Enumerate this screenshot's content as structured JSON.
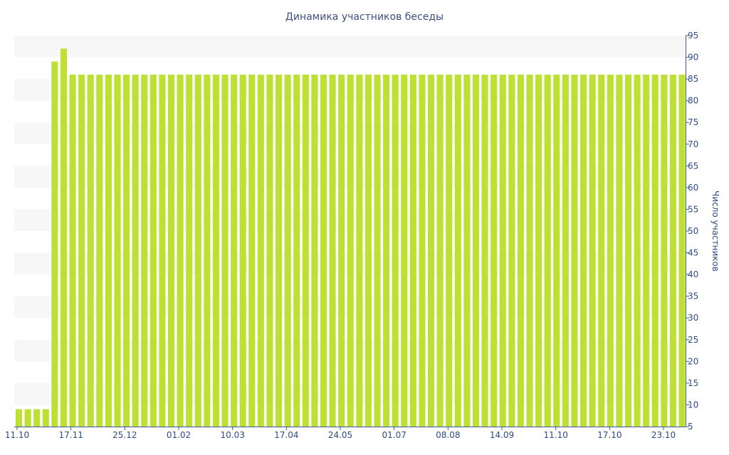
{
  "colors": {
    "bar": "#bde033",
    "axis": "#3e5a9a",
    "text": "#2e4a88",
    "band": "#f7f7f7"
  },
  "chart_data": {
    "type": "bar",
    "title": "Динамика участников беседы",
    "xlabel": "",
    "ylabel": "Число участников",
    "ylim": [
      5,
      95
    ],
    "y_axis_side": "right",
    "grid": "alternating horizontal bands",
    "y_ticks": [
      5,
      10,
      15,
      20,
      25,
      30,
      35,
      40,
      45,
      50,
      55,
      60,
      65,
      70,
      75,
      80,
      85,
      90,
      95
    ],
    "x_tick_labels": [
      "11.10",
      "17.11",
      "25.12",
      "01.02",
      "10.03",
      "17.04",
      "24.05",
      "01.07",
      "08.08",
      "14.09",
      "11.10",
      "17.10",
      "23.10"
    ],
    "series": [
      {
        "values": [
          9,
          9,
          9,
          9,
          89,
          92,
          86,
          86,
          86,
          86,
          86,
          86,
          86,
          86,
          86,
          86,
          86,
          86,
          86,
          86,
          86,
          86,
          86,
          86,
          86,
          86,
          86,
          86,
          86,
          86,
          86,
          86,
          86,
          86,
          86,
          86,
          86,
          86,
          86,
          86,
          86,
          86,
          86,
          86,
          86,
          86,
          86,
          86,
          86,
          86,
          86,
          86,
          86,
          86,
          86,
          86,
          86,
          86,
          86,
          86,
          86,
          86,
          86,
          86,
          86,
          86,
          86,
          86,
          86,
          86,
          86,
          86,
          86,
          86,
          86
        ]
      }
    ]
  }
}
